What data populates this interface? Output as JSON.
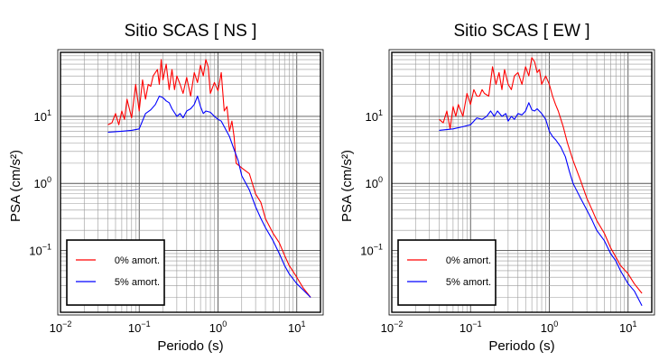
{
  "chart_data": [
    {
      "type": "line",
      "title": "Sitio SCAS [ NS ]",
      "xlabel": "Periodo (s)",
      "ylabel": "PSA (cm/s²)",
      "xscale": "log",
      "yscale": "log",
      "xlim": [
        0.01,
        20
      ],
      "ylim": [
        0.012,
        90
      ],
      "grid": true,
      "legend_position": "bottom-left",
      "x_ticks": [
        {
          "base": "10",
          "exp": "−2",
          "value": 0.01
        },
        {
          "base": "10",
          "exp": "−1",
          "value": 0.1
        },
        {
          "base": "10",
          "exp": "0",
          "value": 1
        },
        {
          "base": "10",
          "exp": "1",
          "value": 10
        }
      ],
      "y_ticks": [
        {
          "base": "10",
          "exp": "−1",
          "value": 0.1
        },
        {
          "base": "10",
          "exp": "0",
          "value": 1
        },
        {
          "base": "10",
          "exp": "1",
          "value": 10
        }
      ],
      "series": [
        {
          "name": "0% amort.",
          "color": "#ff0000",
          "x": [
            0.04,
            0.045,
            0.05,
            0.055,
            0.06,
            0.065,
            0.07,
            0.08,
            0.09,
            0.1,
            0.11,
            0.12,
            0.13,
            0.14,
            0.15,
            0.17,
            0.18,
            0.19,
            0.2,
            0.22,
            0.24,
            0.26,
            0.28,
            0.3,
            0.33,
            0.36,
            0.4,
            0.45,
            0.5,
            0.55,
            0.6,
            0.65,
            0.7,
            0.75,
            0.8,
            0.9,
            1.0,
            1.1,
            1.2,
            1.3,
            1.4,
            1.5,
            1.6,
            1.7,
            2.0,
            2.5,
            3.0,
            3.5,
            4.0,
            5.0,
            6.0,
            7.0,
            8.0,
            10.0,
            12.0,
            15.0
          ],
          "y": [
            7.5,
            8.0,
            11.0,
            7.5,
            12.0,
            9.0,
            18.0,
            9.5,
            30.0,
            12.0,
            35.0,
            18.0,
            30.0,
            28.0,
            40.0,
            50.0,
            30.0,
            70.0,
            35.0,
            60.0,
            25.0,
            50.0,
            25.0,
            40.0,
            30.0,
            22.0,
            38.0,
            20.0,
            45.0,
            32.0,
            58.0,
            40.0,
            70.0,
            55.0,
            22.0,
            32.0,
            24.0,
            45.0,
            12.0,
            14.0,
            6.0,
            8.5,
            5.0,
            2.0,
            1.7,
            1.4,
            0.7,
            0.52,
            0.3,
            0.18,
            0.13,
            0.085,
            0.06,
            0.04,
            0.028,
            0.02
          ]
        },
        {
          "name": "5% amort.",
          "color": "#0000ff",
          "x": [
            0.04,
            0.06,
            0.08,
            0.1,
            0.12,
            0.14,
            0.16,
            0.18,
            0.2,
            0.22,
            0.24,
            0.26,
            0.3,
            0.33,
            0.36,
            0.4,
            0.45,
            0.5,
            0.55,
            0.6,
            0.65,
            0.7,
            0.8,
            0.9,
            1.0,
            1.1,
            1.2,
            1.4,
            1.6,
            1.8,
            2.0,
            2.5,
            3.0,
            3.5,
            4.0,
            5.0,
            6.0,
            7.0,
            8.0,
            10.0,
            12.0,
            15.0
          ],
          "y": [
            5.8,
            6.0,
            6.2,
            6.5,
            11.0,
            12.5,
            15.0,
            20.0,
            19.0,
            17.0,
            16.0,
            13.0,
            10.0,
            11.0,
            9.5,
            12.0,
            13.0,
            15.0,
            20.0,
            14.0,
            11.0,
            12.0,
            11.5,
            10.0,
            9.0,
            8.5,
            7.0,
            5.0,
            3.2,
            2.2,
            1.3,
            0.8,
            0.45,
            0.3,
            0.22,
            0.14,
            0.09,
            0.06,
            0.045,
            0.032,
            0.026,
            0.02
          ]
        }
      ]
    },
    {
      "type": "line",
      "title": "Sitio SCAS [ EW ]",
      "xlabel": "Periodo (s)",
      "ylabel": "PSA (cm/s²)",
      "xscale": "log",
      "yscale": "log",
      "xlim": [
        0.01,
        20
      ],
      "ylim": [
        0.012,
        90
      ],
      "grid": true,
      "legend_position": "bottom-left",
      "x_ticks": [
        {
          "base": "10",
          "exp": "−2",
          "value": 0.01
        },
        {
          "base": "10",
          "exp": "−1",
          "value": 0.1
        },
        {
          "base": "10",
          "exp": "0",
          "value": 1
        },
        {
          "base": "10",
          "exp": "1",
          "value": 10
        }
      ],
      "y_ticks": [
        {
          "base": "10",
          "exp": "−1",
          "value": 0.1
        },
        {
          "base": "10",
          "exp": "0",
          "value": 1
        },
        {
          "base": "10",
          "exp": "1",
          "value": 10
        }
      ],
      "series": [
        {
          "name": "0% amort.",
          "color": "#ff0000",
          "x": [
            0.04,
            0.045,
            0.05,
            0.055,
            0.06,
            0.065,
            0.07,
            0.08,
            0.09,
            0.1,
            0.11,
            0.12,
            0.13,
            0.14,
            0.15,
            0.17,
            0.19,
            0.21,
            0.23,
            0.25,
            0.27,
            0.3,
            0.33,
            0.36,
            0.4,
            0.45,
            0.5,
            0.55,
            0.6,
            0.65,
            0.7,
            0.75,
            0.8,
            0.9,
            1.0,
            1.1,
            1.2,
            1.3,
            1.5,
            1.7,
            2.0,
            2.5,
            3.0,
            3.5,
            4.0,
            5.0,
            6.0,
            7.0,
            8.0,
            10.0,
            12.0,
            15.0
          ],
          "y": [
            9.0,
            8.0,
            12.0,
            6.5,
            14.0,
            10.0,
            15.0,
            10.0,
            22.0,
            15.0,
            25.0,
            20.0,
            20.0,
            25.0,
            22.0,
            20.0,
            55.0,
            30.0,
            45.0,
            25.0,
            50.0,
            30.0,
            25.0,
            40.0,
            45.0,
            30.0,
            55.0,
            40.0,
            75.0,
            65.0,
            45.0,
            50.0,
            30.0,
            40.0,
            30.0,
            20.0,
            15.0,
            12.0,
            7.0,
            4.0,
            2.2,
            1.1,
            0.6,
            0.4,
            0.28,
            0.18,
            0.11,
            0.08,
            0.06,
            0.045,
            0.032,
            0.023
          ]
        },
        {
          "name": "5% amort.",
          "color": "#0000ff",
          "x": [
            0.04,
            0.06,
            0.08,
            0.1,
            0.12,
            0.14,
            0.16,
            0.18,
            0.2,
            0.22,
            0.25,
            0.28,
            0.3,
            0.33,
            0.36,
            0.4,
            0.45,
            0.5,
            0.55,
            0.6,
            0.65,
            0.7,
            0.8,
            0.9,
            1.0,
            1.1,
            1.2,
            1.4,
            1.6,
            1.8,
            2.0,
            2.5,
            3.0,
            3.5,
            4.0,
            5.0,
            6.0,
            7.0,
            8.0,
            10.0,
            12.0,
            15.0
          ],
          "y": [
            6.2,
            6.5,
            7.0,
            7.5,
            9.5,
            9.0,
            10.0,
            12.0,
            10.0,
            12.0,
            10.0,
            11.0,
            8.5,
            10.0,
            9.0,
            11.0,
            10.5,
            12.0,
            16.0,
            12.5,
            12.0,
            13.0,
            11.0,
            9.0,
            6.0,
            5.0,
            4.5,
            3.5,
            2.5,
            1.5,
            1.0,
            0.6,
            0.4,
            0.28,
            0.2,
            0.14,
            0.09,
            0.07,
            0.05,
            0.032,
            0.025,
            0.015
          ]
        }
      ]
    }
  ]
}
